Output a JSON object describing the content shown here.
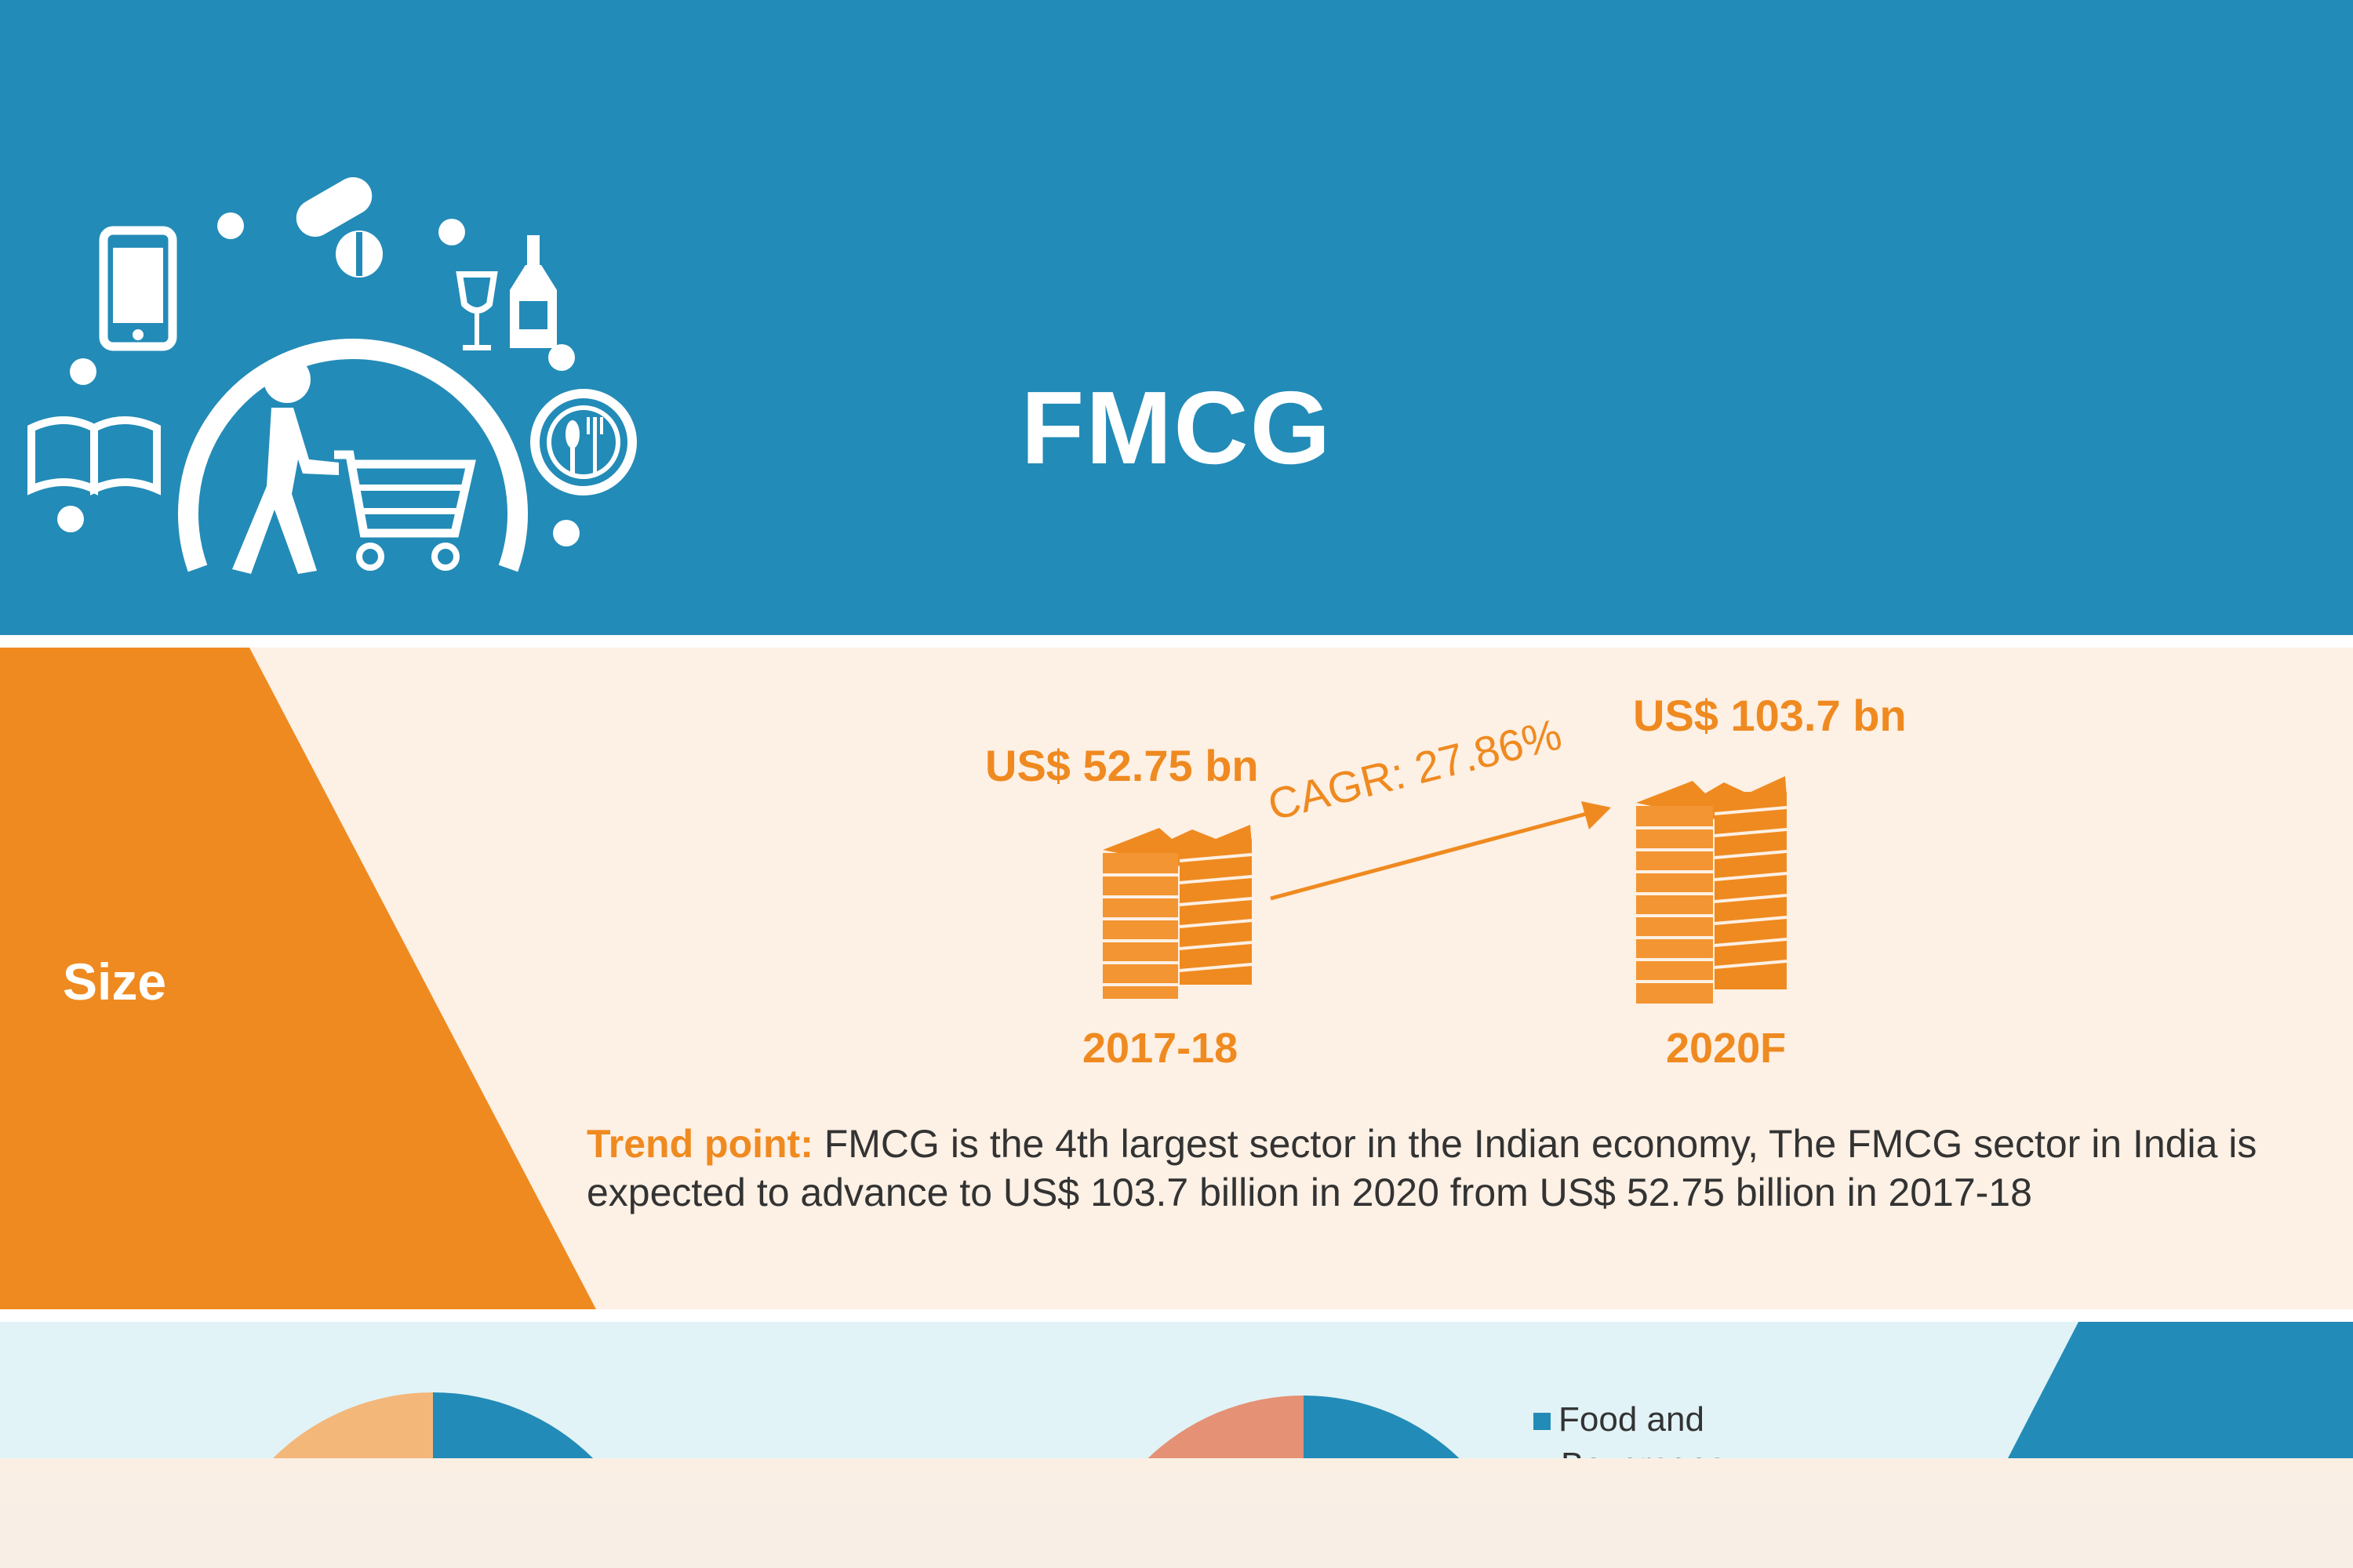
{
  "header": {
    "title": "FMCG",
    "logo_icons": [
      "mobile-phone-icon",
      "pills-icon",
      "wine-glass-icon",
      "bottle-icon",
      "book-icon",
      "plate-cutlery-icon",
      "shopper-cart-icon"
    ]
  },
  "size_section": {
    "label": "Size",
    "from": {
      "value": "US$ 52.75 bn",
      "year": "2017-18"
    },
    "to": {
      "value": "US$ 103.7 bn",
      "year": "2020F"
    },
    "cagr": "CAGR: 27.86%",
    "trend_label": "Trend point:",
    "trend_text": " FMCG is the 4th largest sector in the Indian economy, The FMCG sector in India is expected to advance to US$ 103.7 billion in 2020 from US$ 52.75 billion in 2017-18"
  },
  "bottom_section": {
    "legend_label": "Food and",
    "legend_label_cut": "Beverages",
    "colors": {
      "blue": "#238bb7",
      "peach": "#f4b77a",
      "salmon": "#e59175"
    }
  },
  "colors": {
    "header_bg": "#238bb7",
    "accent_orange": "#ef8a20",
    "cream_bg": "#fdf0e4",
    "light_blue_bg": "#e1f3f6"
  }
}
